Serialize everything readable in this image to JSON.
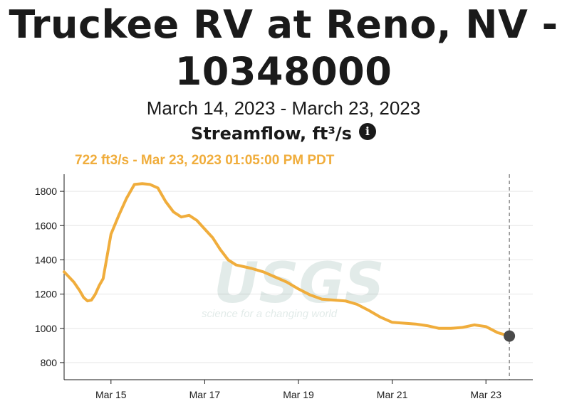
{
  "header": {
    "title_line1": "Truckee RV at Reno, NV -",
    "title_line2": "10348000",
    "date_range": "March 14, 2023 - March 23, 2023",
    "parameter": "Streamflow, ft³/s",
    "info_icon": "info-icon"
  },
  "tooltip": {
    "text": "722 ft3/s - Mar 23, 2023 01:05:00 PM PDT"
  },
  "watermark": {
    "logo": "USGS",
    "tagline": "science for a changing world"
  },
  "colors": {
    "series": "#f0ad3c",
    "grid": "#e6e6e6",
    "axis": "#1a1a1a",
    "marker": "#4a4a4a"
  },
  "chart_data": {
    "type": "line",
    "x_unit": "days",
    "x_ticks": [
      {
        "label": "Mar 15",
        "value": "2023-03-15"
      },
      {
        "label": "Mar 17",
        "value": "2023-03-17"
      },
      {
        "label": "Mar 19",
        "value": "2023-03-19"
      },
      {
        "label": "Mar 21",
        "value": "2023-03-21"
      },
      {
        "label": "Mar 23",
        "value": "2023-03-23"
      }
    ],
    "y_ticks": [
      800,
      1000,
      1200,
      1400,
      1600,
      1800
    ],
    "xlim": [
      "2023-03-14T00:00",
      "2023-03-24T00:00"
    ],
    "ylim": [
      700,
      1900
    ],
    "grid": true,
    "series": [
      {
        "points": [
          [
            "2023-03-14T00:00",
            1330
          ],
          [
            "2023-03-14T05:00",
            1270
          ],
          [
            "2023-03-14T08:00",
            1220
          ],
          [
            "2023-03-14T10:00",
            1180
          ],
          [
            "2023-03-14T12:00",
            1160
          ],
          [
            "2023-03-14T14:00",
            1165
          ],
          [
            "2023-03-14T16:00",
            1200
          ],
          [
            "2023-03-14T18:00",
            1250
          ],
          [
            "2023-03-14T20:00",
            1290
          ],
          [
            "2023-03-15T00:00",
            1550
          ],
          [
            "2023-03-15T04:00",
            1660
          ],
          [
            "2023-03-15T08:00",
            1760
          ],
          [
            "2023-03-15T12:00",
            1840
          ],
          [
            "2023-03-15T16:00",
            1845
          ],
          [
            "2023-03-15T20:00",
            1840
          ],
          [
            "2023-03-16T00:00",
            1820
          ],
          [
            "2023-03-16T04:00",
            1740
          ],
          [
            "2023-03-16T08:00",
            1680
          ],
          [
            "2023-03-16T12:00",
            1650
          ],
          [
            "2023-03-16T16:00",
            1660
          ],
          [
            "2023-03-16T20:00",
            1630
          ],
          [
            "2023-03-17T00:00",
            1580
          ],
          [
            "2023-03-17T04:00",
            1530
          ],
          [
            "2023-03-17T08:00",
            1460
          ],
          [
            "2023-03-17T12:00",
            1400
          ],
          [
            "2023-03-17T16:00",
            1370
          ],
          [
            "2023-03-17T20:00",
            1360
          ],
          [
            "2023-03-18T00:00",
            1350
          ],
          [
            "2023-03-18T06:00",
            1330
          ],
          [
            "2023-03-18T12:00",
            1300
          ],
          [
            "2023-03-18T18:00",
            1270
          ],
          [
            "2023-03-19T00:00",
            1230
          ],
          [
            "2023-03-19T06:00",
            1195
          ],
          [
            "2023-03-19T12:00",
            1170
          ],
          [
            "2023-03-19T18:00",
            1165
          ],
          [
            "2023-03-20T00:00",
            1160
          ],
          [
            "2023-03-20T06:00",
            1140
          ],
          [
            "2023-03-20T12:00",
            1105
          ],
          [
            "2023-03-20T18:00",
            1065
          ],
          [
            "2023-03-21T00:00",
            1035
          ],
          [
            "2023-03-21T06:00",
            1030
          ],
          [
            "2023-03-21T12:00",
            1025
          ],
          [
            "2023-03-21T18:00",
            1015
          ],
          [
            "2023-03-22T00:00",
            1000
          ],
          [
            "2023-03-22T06:00",
            1000
          ],
          [
            "2023-03-22T12:00",
            1005
          ],
          [
            "2023-03-22T18:00",
            1020
          ],
          [
            "2023-03-23T00:00",
            1010
          ],
          [
            "2023-03-23T06:00",
            975
          ],
          [
            "2023-03-23T12:00",
            955
          ]
        ]
      }
    ]
  }
}
